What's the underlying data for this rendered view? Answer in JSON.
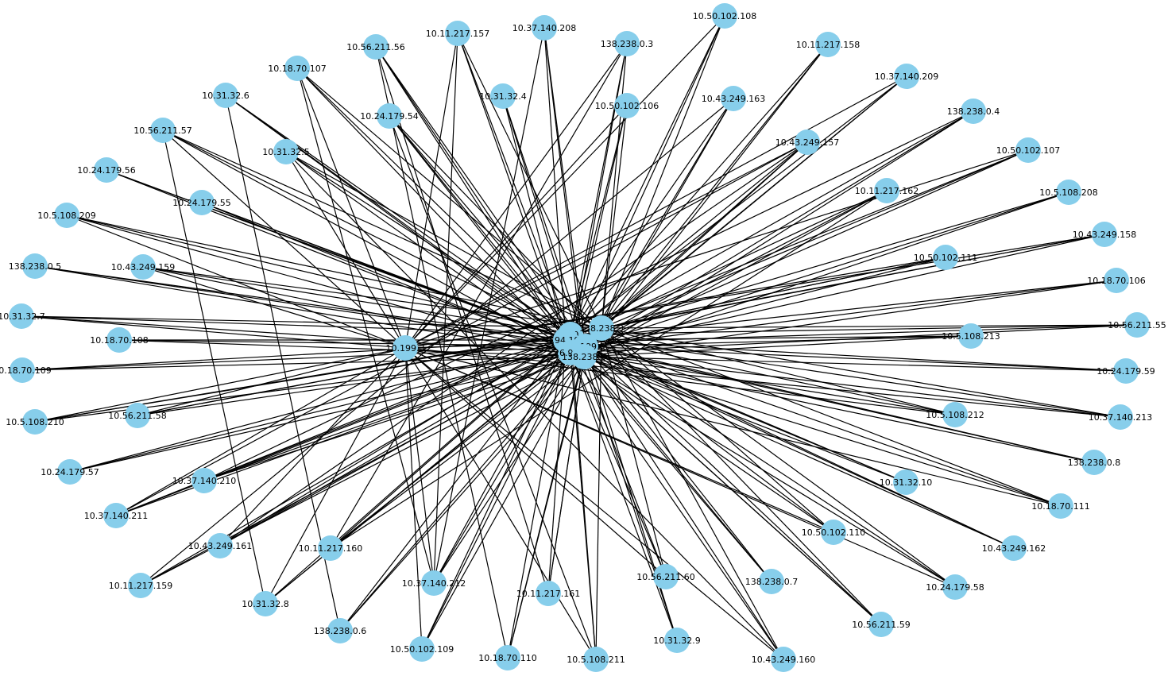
{
  "style": {
    "node_color": "#87ceeb",
    "edge_color": "#000000",
    "label_color": "#000000",
    "background": "#ffffff"
  },
  "hub_edge_count": 2,
  "nodes": [
    {
      "id": "hub-a",
      "label": "10.199.31"
    },
    {
      "id": "hub-b",
      "label": "4.94.195"
    },
    {
      "id": "hub-c",
      "label": "138.238.3"
    },
    {
      "id": "hub-d",
      "label": "10.199.5"
    },
    {
      "id": "hub-e",
      "label": "26.96.3"
    },
    {
      "id": "hub-f",
      "label": "138.238.3"
    },
    {
      "id": "hub-g",
      "label": "10.199.3"
    },
    {
      "id": "n01",
      "label": "10.50.102.108"
    },
    {
      "id": "n02",
      "label": "10.11.217.158"
    },
    {
      "id": "n03",
      "label": "10.37.140.209"
    },
    {
      "id": "n04",
      "label": "138.238.0.4"
    },
    {
      "id": "n05",
      "label": "10.50.102.107"
    },
    {
      "id": "n06",
      "label": "10.5.108.208"
    },
    {
      "id": "n07",
      "label": "10.43.249.158"
    },
    {
      "id": "n08",
      "label": "10.18.70.106"
    },
    {
      "id": "n09",
      "label": "10.56.211.55"
    },
    {
      "id": "n10",
      "label": "10.24.179.59"
    },
    {
      "id": "n11",
      "label": "10.37.140.213"
    },
    {
      "id": "n12",
      "label": "138.238.0.8"
    },
    {
      "id": "n13",
      "label": "10.18.70.111"
    },
    {
      "id": "n14",
      "label": "10.43.249.162"
    },
    {
      "id": "n15",
      "label": "10.24.179.58"
    },
    {
      "id": "n16",
      "label": "10.56.211.59"
    },
    {
      "id": "n17",
      "label": "10.43.249.160"
    },
    {
      "id": "n18",
      "label": "10.31.32.9"
    },
    {
      "id": "n19",
      "label": "10.5.108.211"
    },
    {
      "id": "n20",
      "label": "10.18.70.110"
    },
    {
      "id": "n21",
      "label": "10.50.102.109"
    },
    {
      "id": "n22",
      "label": "138.238.0.6"
    },
    {
      "id": "n23",
      "label": "10.31.32.8"
    },
    {
      "id": "n24",
      "label": "10.11.217.159"
    },
    {
      "id": "n25",
      "label": "10.37.140.211"
    },
    {
      "id": "n26",
      "label": "10.24.179.57"
    },
    {
      "id": "n27",
      "label": "10.5.108.210"
    },
    {
      "id": "n28",
      "label": "10.18.70.109"
    },
    {
      "id": "n29",
      "label": "10.31.32.7"
    },
    {
      "id": "n30",
      "label": "138.238.0.5"
    },
    {
      "id": "n31",
      "label": "10.5.108.209"
    },
    {
      "id": "n32",
      "label": "10.24.179.56"
    },
    {
      "id": "n33",
      "label": "10.56.211.57"
    },
    {
      "id": "n34",
      "label": "10.31.32.6"
    },
    {
      "id": "n35",
      "label": "10.18.70.107"
    },
    {
      "id": "n36",
      "label": "10.56.211.56"
    },
    {
      "id": "n37",
      "label": "10.11.217.157"
    },
    {
      "id": "n38",
      "label": "10.37.140.208"
    },
    {
      "id": "n39",
      "label": "138.238.0.3"
    },
    {
      "id": "m01",
      "label": "10.31.32.4"
    },
    {
      "id": "m02",
      "label": "10.50.102.106"
    },
    {
      "id": "m03",
      "label": "10.43.249.163"
    },
    {
      "id": "m04",
      "label": "10.43.249.157"
    },
    {
      "id": "m05",
      "label": "10.11.217.162"
    },
    {
      "id": "m06",
      "label": "10.50.102.111"
    },
    {
      "id": "m07",
      "label": "10.5.108.213"
    },
    {
      "id": "m08",
      "label": "10.5.108.212"
    },
    {
      "id": "m09",
      "label": "10.31.32.10"
    },
    {
      "id": "m10",
      "label": "10.50.102.110"
    },
    {
      "id": "m11",
      "label": "138.238.0.7"
    },
    {
      "id": "m12",
      "label": "10.56.211.60"
    },
    {
      "id": "m13",
      "label": "10.11.217.161"
    },
    {
      "id": "m14",
      "label": "10.37.140.212"
    },
    {
      "id": "m15",
      "label": "10.11.217.160"
    },
    {
      "id": "m16",
      "label": "10.43.249.161"
    },
    {
      "id": "m17",
      "label": "10.37.140.210"
    },
    {
      "id": "m18",
      "label": "10.56.211.58"
    },
    {
      "id": "m19",
      "label": "10.18.70.108"
    },
    {
      "id": "m20",
      "label": "10.43.249.159"
    },
    {
      "id": "m21",
      "label": "10.24.179.55"
    },
    {
      "id": "m22",
      "label": "10.31.32.5"
    },
    {
      "id": "m23",
      "label": "10.24.179.54"
    }
  ]
}
